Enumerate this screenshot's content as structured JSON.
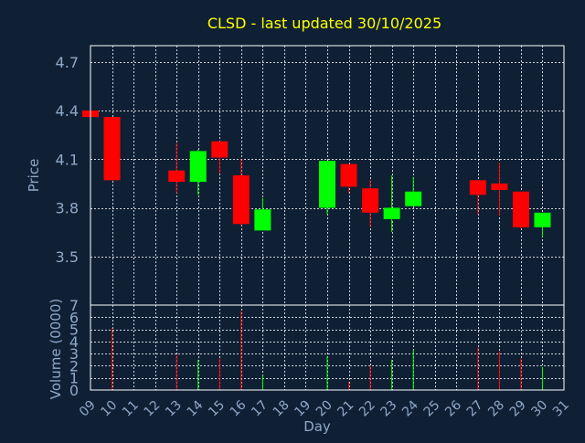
{
  "colors": {
    "background": "#0f2035",
    "title": "#ffff00",
    "axis_text": "#8fa8c8",
    "plot_border": "#ffffff",
    "grid": "#ffffff",
    "up": "#00ff00",
    "down": "#ff0000"
  },
  "chart_data": [
    {
      "type": "candlestick",
      "title": "CLSD - last updated 30/10/2025",
      "ylabel": "Price",
      "xlim": [
        9,
        31
      ],
      "ylim": [
        3.2,
        4.8
      ],
      "y_ticks": [
        "3.5",
        "3.8",
        "4.1",
        "4.4",
        "4.7"
      ],
      "grid": true,
      "candles": [
        {
          "day": 9,
          "open": 4.4,
          "high": 4.4,
          "low": 4.36,
          "close": 4.36
        },
        {
          "day": 10,
          "open": 4.36,
          "high": 4.36,
          "low": 3.97,
          "close": 3.97
        },
        {
          "day": 13,
          "open": 4.03,
          "high": 4.2,
          "low": 3.89,
          "close": 3.96
        },
        {
          "day": 14,
          "open": 3.96,
          "high": 4.16,
          "low": 3.88,
          "close": 4.15
        },
        {
          "day": 15,
          "open": 4.21,
          "high": 4.21,
          "low": 4.01,
          "close": 4.11
        },
        {
          "day": 16,
          "open": 4.0,
          "high": 4.1,
          "low": 3.69,
          "close": 3.7
        },
        {
          "day": 17,
          "open": 3.66,
          "high": 3.86,
          "low": 3.66,
          "close": 3.79
        },
        {
          "day": 20,
          "open": 3.8,
          "high": 4.09,
          "low": 3.76,
          "close": 4.09
        },
        {
          "day": 21,
          "open": 4.07,
          "high": 4.07,
          "low": 3.89,
          "close": 3.93
        },
        {
          "day": 22,
          "open": 3.92,
          "high": 3.97,
          "low": 3.68,
          "close": 3.77
        },
        {
          "day": 23,
          "open": 3.73,
          "high": 4.0,
          "low": 3.65,
          "close": 3.8
        },
        {
          "day": 24,
          "open": 3.81,
          "high": 3.99,
          "low": 3.81,
          "close": 3.9
        },
        {
          "day": 27,
          "open": 3.97,
          "high": 3.97,
          "low": 3.76,
          "close": 3.88
        },
        {
          "day": 28,
          "open": 3.95,
          "high": 4.08,
          "low": 3.75,
          "close": 3.91
        },
        {
          "day": 29,
          "open": 3.9,
          "high": 3.9,
          "low": 3.67,
          "close": 3.68
        },
        {
          "day": 30,
          "open": 3.68,
          "high": 3.77,
          "low": 3.62,
          "close": 3.77
        }
      ]
    },
    {
      "type": "bar",
      "ylabel": "Volume (0000)",
      "xlabel": "Day",
      "xlim": [
        9,
        31
      ],
      "ylim": [
        0,
        7
      ],
      "x_ticks": [
        "09",
        "10",
        "11",
        "12",
        "13",
        "14",
        "15",
        "16",
        "17",
        "18",
        "19",
        "20",
        "21",
        "22",
        "23",
        "24",
        "25",
        "26",
        "27",
        "28",
        "29",
        "30",
        "31"
      ],
      "y_ticks": [
        "0",
        "1",
        "2",
        "3",
        "4",
        "5",
        "6",
        "7"
      ],
      "grid": true,
      "bars": [
        {
          "day": 10,
          "value": 5.1,
          "dir": "down"
        },
        {
          "day": 13,
          "value": 2.9,
          "dir": "down"
        },
        {
          "day": 14,
          "value": 2.5,
          "dir": "up"
        },
        {
          "day": 15,
          "value": 2.6,
          "dir": "down"
        },
        {
          "day": 16,
          "value": 6.5,
          "dir": "down"
        },
        {
          "day": 17,
          "value": 1.2,
          "dir": "up"
        },
        {
          "day": 20,
          "value": 2.8,
          "dir": "up"
        },
        {
          "day": 21,
          "value": 0.7,
          "dir": "down"
        },
        {
          "day": 22,
          "value": 2.0,
          "dir": "down"
        },
        {
          "day": 23,
          "value": 2.5,
          "dir": "up"
        },
        {
          "day": 24,
          "value": 3.3,
          "dir": "up"
        },
        {
          "day": 27,
          "value": 3.5,
          "dir": "down"
        },
        {
          "day": 28,
          "value": 3.2,
          "dir": "down"
        },
        {
          "day": 29,
          "value": 2.6,
          "dir": "down"
        },
        {
          "day": 30,
          "value": 1.9,
          "dir": "up"
        }
      ]
    }
  ]
}
